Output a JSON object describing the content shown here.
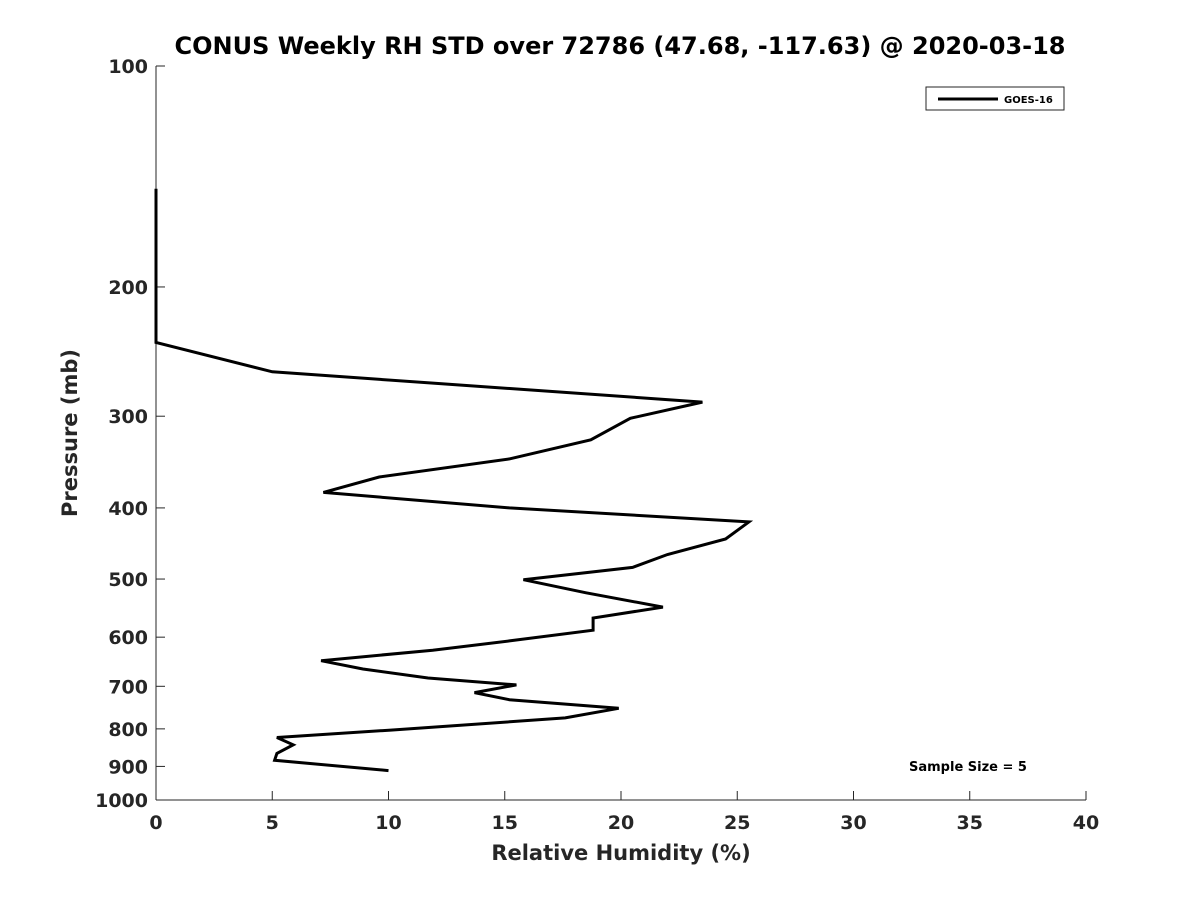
{
  "chart_data": {
    "type": "line",
    "title": "CONUS Weekly RH STD over 72786 (47.68, -117.63) @ 2020-03-18",
    "xlabel": "Relative Humidity (%)",
    "ylabel": "Pressure (mb)",
    "xlim": [
      0,
      40
    ],
    "ylim": [
      100,
      1000
    ],
    "yscale": "log",
    "y_reversed": true,
    "xticks": [
      0,
      5,
      10,
      15,
      20,
      25,
      30,
      35,
      40
    ],
    "xtick_labels": [
      "0",
      "5",
      "10",
      "15",
      "20",
      "25",
      "30",
      "35",
      "40"
    ],
    "yticks": [
      100,
      200,
      300,
      400,
      500,
      600,
      700,
      800,
      900,
      1000
    ],
    "ytick_labels": [
      "100",
      "200",
      "300",
      "400",
      "500",
      "600",
      "700",
      "800",
      "900",
      "1000"
    ],
    "grid": false,
    "legend_position": "top-right",
    "series": [
      {
        "name": "GOES-16",
        "color": "#000000",
        "points": [
          [
            0,
            147
          ],
          [
            0,
            175
          ],
          [
            0,
            200
          ],
          [
            0,
            225
          ],
          [
            0,
            238
          ],
          [
            5.0,
            261
          ],
          [
            23.5,
            287
          ],
          [
            20.4,
            302
          ],
          [
            18.7,
            323
          ],
          [
            15.2,
            343
          ],
          [
            9.6,
            363
          ],
          [
            7.2,
            381
          ],
          [
            15.2,
            400
          ],
          [
            25.5,
            418
          ],
          [
            24.5,
            441
          ],
          [
            22.0,
            463
          ],
          [
            20.5,
            482
          ],
          [
            15.8,
            501
          ],
          [
            18.5,
            522
          ],
          [
            21.8,
            546
          ],
          [
            18.8,
            565
          ],
          [
            18.8,
            587
          ],
          [
            15.2,
            607
          ],
          [
            11.9,
            625
          ],
          [
            7.1,
            646
          ],
          [
            8.9,
            663
          ],
          [
            11.7,
            682
          ],
          [
            15.5,
            697
          ],
          [
            13.7,
            714
          ],
          [
            15.2,
            730
          ],
          [
            19.9,
            750
          ],
          [
            17.6,
            773
          ],
          [
            10.1,
            803
          ],
          [
            5.2,
            822
          ],
          [
            5.9,
            841
          ],
          [
            5.2,
            864
          ],
          [
            5.1,
            883
          ],
          [
            10.0,
            912
          ]
        ]
      }
    ],
    "annotation": "Sample Size = 5"
  }
}
